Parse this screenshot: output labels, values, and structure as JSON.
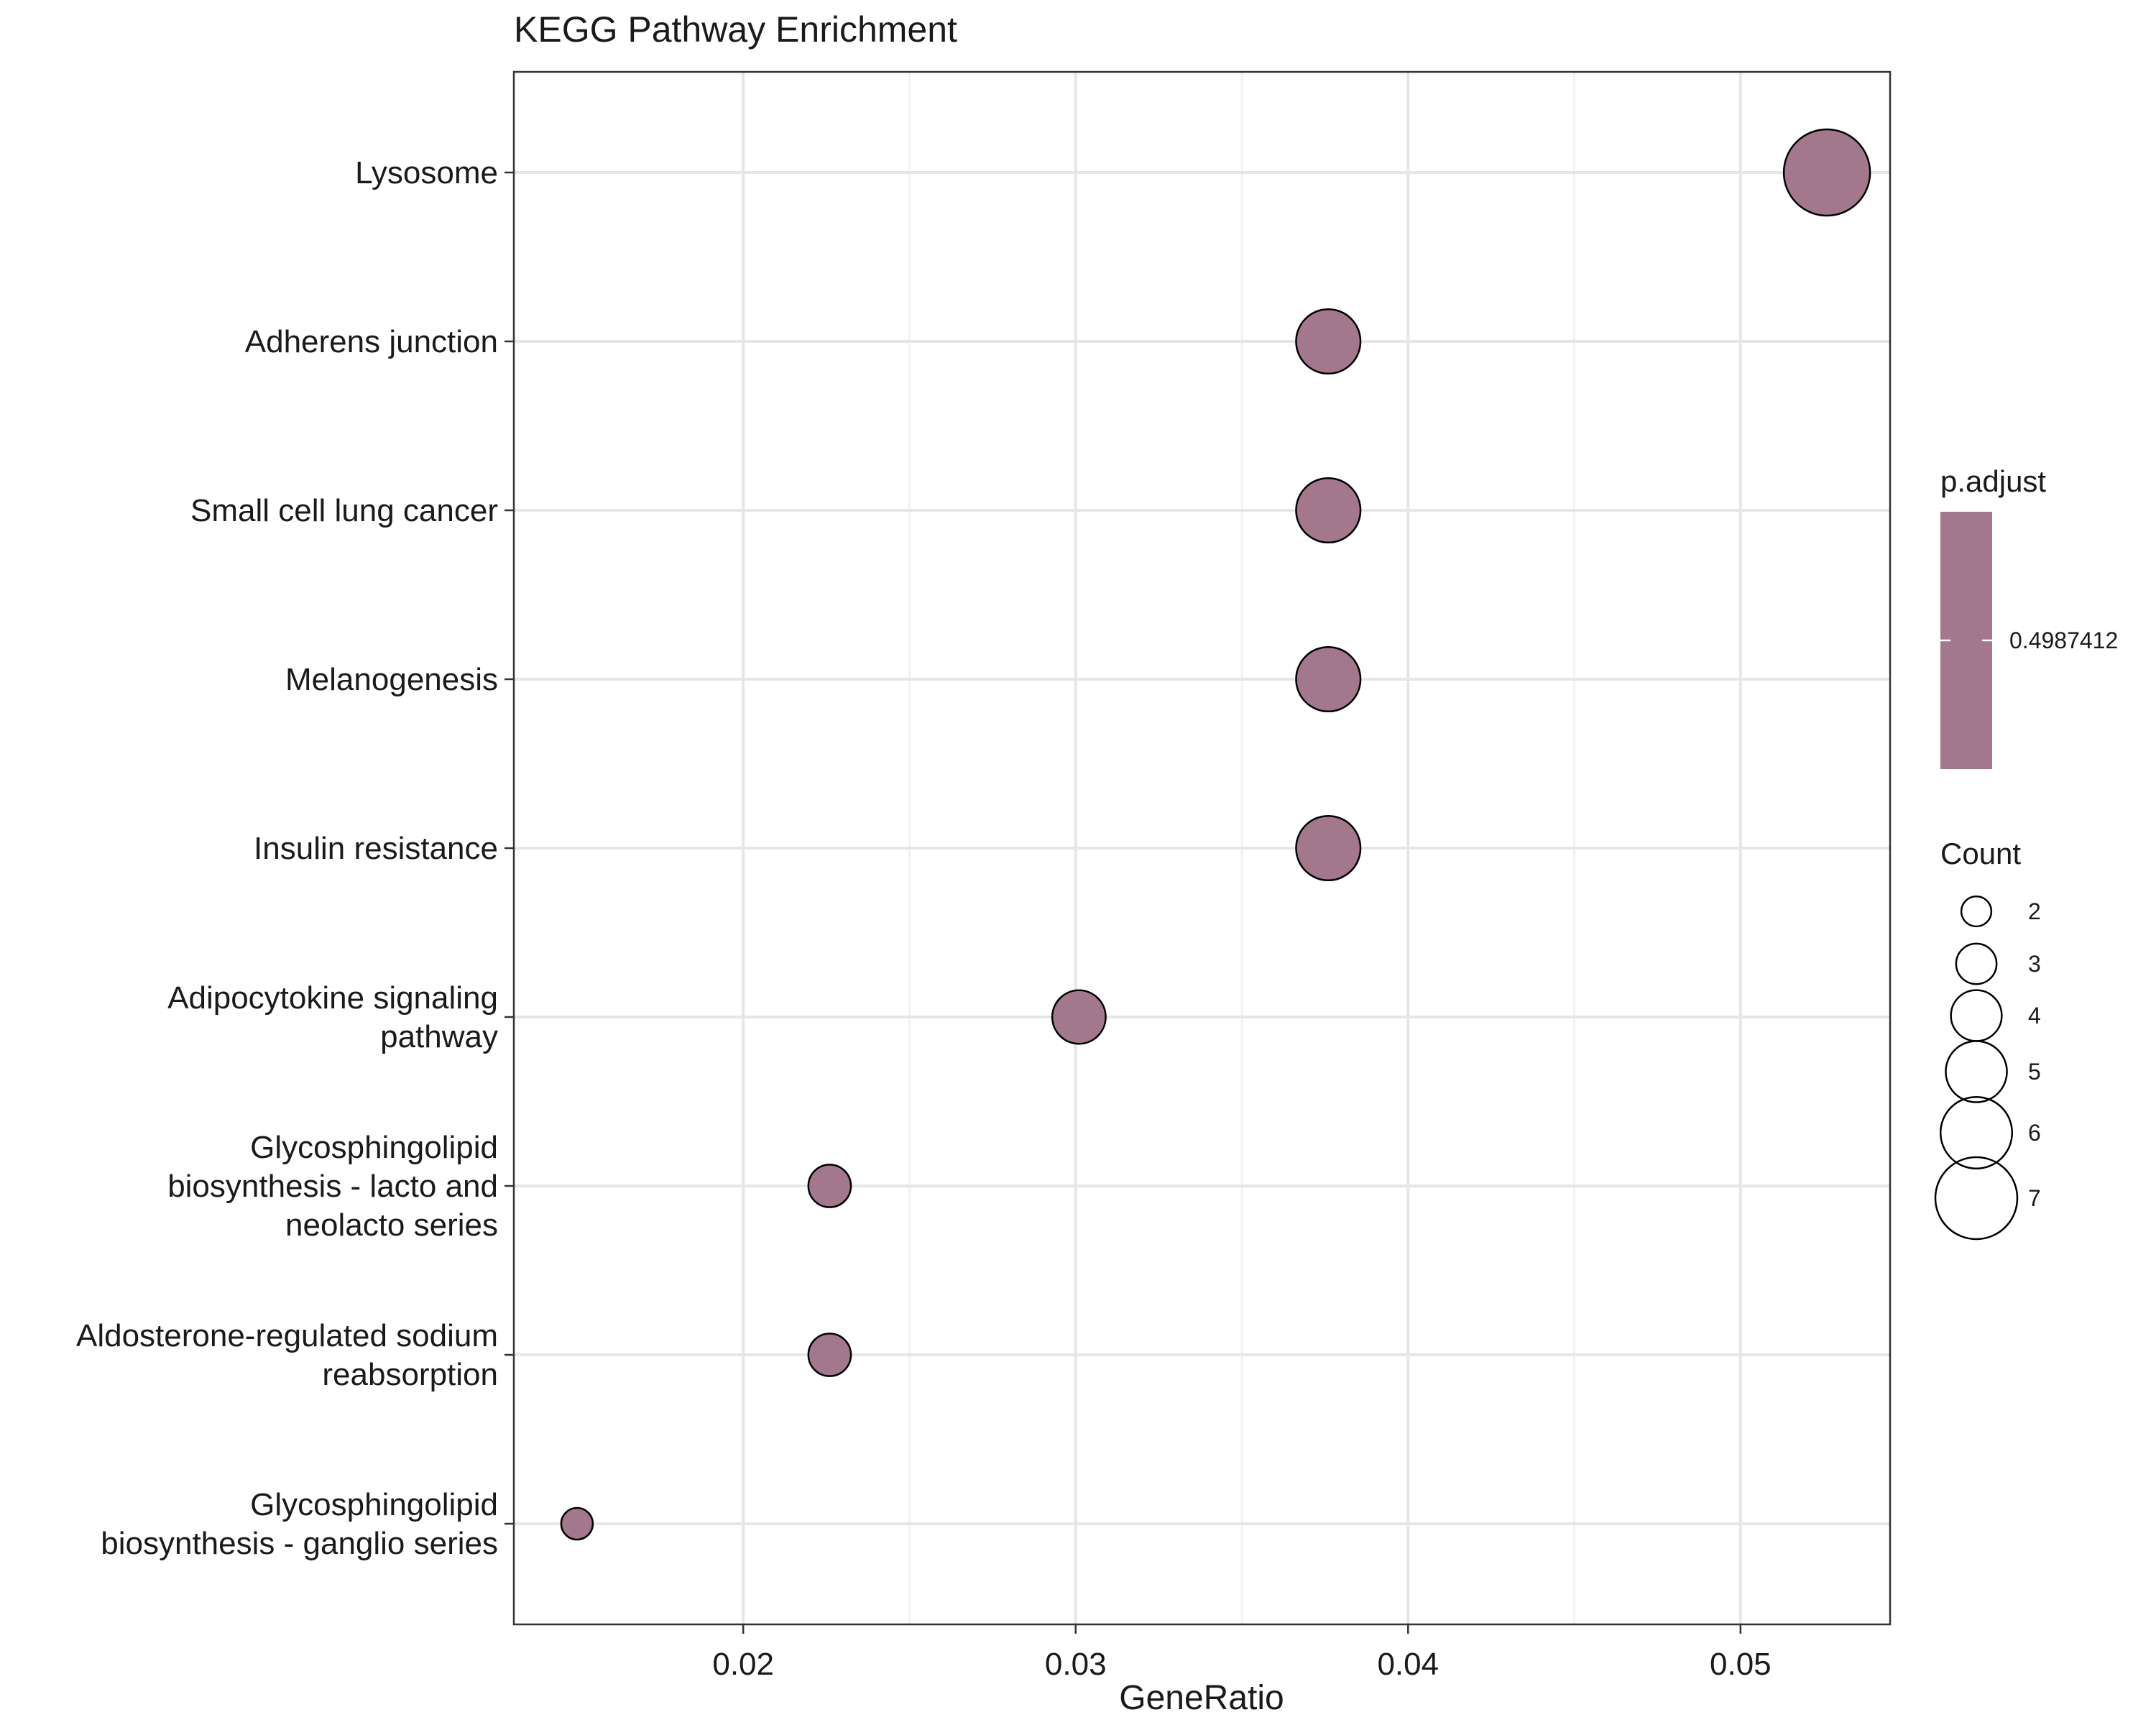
{
  "chart_data": {
    "type": "scatter",
    "title": "KEGG Pathway Enrichment",
    "xlabel": "GeneRatio",
    "ylabel": "",
    "xlim": [
      0.0131,
      0.0545
    ],
    "xticks": [
      0.02,
      0.03,
      0.04,
      0.05
    ],
    "xtick_labels": [
      "0.02",
      "0.03",
      "0.04",
      "0.05"
    ],
    "grid": true,
    "categories": [
      "Lysosome",
      "Adherens junction",
      "Small cell lung cancer",
      "Melanogenesis",
      "Insulin resistance",
      "Adipocytokine signaling pathway",
      "Glycosphingolipid biosynthesis - lacto and neolacto series",
      "Aldosterone-regulated sodium reabsorption",
      "Glycosphingolipid biosynthesis - ganglio series"
    ],
    "category_label_lines": [
      [
        "Lysosome"
      ],
      [
        "Adherens junction"
      ],
      [
        "Small cell lung cancer"
      ],
      [
        "Melanogenesis"
      ],
      [
        "Insulin resistance"
      ],
      [
        "Adipocytokine signaling",
        "pathway"
      ],
      [
        "Glycosphingolipid",
        "biosynthesis - lacto and",
        "neolacto series"
      ],
      [
        "Aldosterone-regulated sodium",
        "reabsorption"
      ],
      [
        "Glycosphingolipid",
        "biosynthesis - ganglio series"
      ]
    ],
    "points": [
      {
        "category": "Lysosome",
        "gene_ratio": 0.0526,
        "count": 7,
        "p_adjust": 0.4987412
      },
      {
        "category": "Adherens junction",
        "gene_ratio": 0.0376,
        "count": 5,
        "p_adjust": 0.4987412
      },
      {
        "category": "Small cell lung cancer",
        "gene_ratio": 0.0376,
        "count": 5,
        "p_adjust": 0.4987412
      },
      {
        "category": "Melanogenesis",
        "gene_ratio": 0.0376,
        "count": 5,
        "p_adjust": 0.4987412
      },
      {
        "category": "Insulin resistance",
        "gene_ratio": 0.0376,
        "count": 5,
        "p_adjust": 0.4987412
      },
      {
        "category": "Adipocytokine signaling pathway",
        "gene_ratio": 0.0301,
        "count": 4,
        "p_adjust": 0.4987412
      },
      {
        "category": "Glycosphingolipid biosynthesis - lacto and neolacto series",
        "gene_ratio": 0.0226,
        "count": 3,
        "p_adjust": 0.4987412
      },
      {
        "category": "Aldosterone-regulated sodium reabsorption",
        "gene_ratio": 0.0226,
        "count": 3,
        "p_adjust": 0.4987412
      },
      {
        "category": "Glycosphingolipid biosynthesis - ganglio series",
        "gene_ratio": 0.015,
        "count": 2,
        "p_adjust": 0.4987412
      }
    ],
    "point_color": "#a4788c",
    "point_stroke": "#000000",
    "legend_placement": "right",
    "color_legend": {
      "title": "p.adjust",
      "label": "0.4987412",
      "color": "#a4788c"
    },
    "size_legend": {
      "title": "Count",
      "values": [
        2,
        3,
        4,
        5,
        6,
        7
      ],
      "labels": [
        "2",
        "3",
        "4",
        "5",
        "6",
        "7"
      ]
    }
  }
}
